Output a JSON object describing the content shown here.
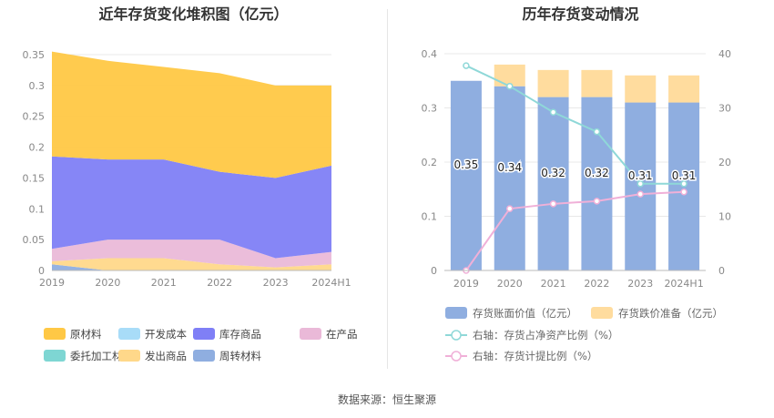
{
  "source": "数据来源：恒生聚源",
  "chart_data": [
    {
      "type": "area",
      "stacked": true,
      "title": "近年存货变化堆积图（亿元）",
      "categories": [
        "2019",
        "2020",
        "2021",
        "2022",
        "2023",
        "2024H1"
      ],
      "ylim": [
        0,
        0.35
      ],
      "yticks": [
        "0",
        "0.05",
        "0.1",
        "0.15",
        "0.2",
        "0.25",
        "0.3",
        "0.35"
      ],
      "grid": true,
      "legend_position": "bottom",
      "series": [
        {
          "name": "原材料",
          "color": "#ffc845",
          "values": [
            0.17,
            0.16,
            0.15,
            0.16,
            0.15,
            0.13
          ]
        },
        {
          "name": "开发成本",
          "color": "#a8dcf8",
          "values": [
            0,
            0,
            0,
            0,
            0,
            0
          ]
        },
        {
          "name": "库存商品",
          "color": "#7f7ff6",
          "values": [
            0.15,
            0.13,
            0.13,
            0.11,
            0.13,
            0.14
          ]
        },
        {
          "name": "在产品",
          "color": "#eab9d8",
          "values": [
            0.02,
            0.03,
            0.03,
            0.04,
            0.015,
            0.02
          ]
        },
        {
          "name": "委托加工材料",
          "color": "#7ed6d3",
          "values": [
            0,
            0,
            0,
            0,
            0,
            0
          ]
        },
        {
          "name": "发出商品",
          "color": "#ffd88a",
          "values": [
            0.005,
            0.02,
            0.02,
            0.01,
            0.005,
            0.01
          ]
        },
        {
          "name": "周转材料",
          "color": "#8faee0",
          "values": [
            0.01,
            0,
            0,
            0,
            0,
            0
          ]
        }
      ]
    },
    {
      "type": "bar",
      "stacked": true,
      "title": "历年存货变动情况",
      "categories": [
        "2019",
        "2020",
        "2021",
        "2022",
        "2023",
        "2024H1"
      ],
      "ylim": [
        0,
        0.4
      ],
      "yticks": [
        "0",
        "0.1",
        "0.2",
        "0.3",
        "0.4"
      ],
      "y2lim": [
        0,
        40
      ],
      "y2ticks": [
        "0",
        "10",
        "20",
        "30",
        "40"
      ],
      "grid": true,
      "legend_position": "bottom",
      "series": [
        {
          "name": "存货账面价值（亿元）",
          "color": "#8faee0",
          "axis": "left",
          "kind": "bar",
          "values": [
            0.35,
            0.34,
            0.32,
            0.32,
            0.31,
            0.31
          ],
          "labels": [
            "0.35",
            "0.34",
            "0.32",
            "0.32",
            "0.31",
            "0.31"
          ]
        },
        {
          "name": "存货跌价准备（亿元）",
          "color": "#ffdc9e",
          "axis": "left",
          "kind": "bar",
          "values": [
            0,
            0.04,
            0.05,
            0.05,
            0.05,
            0.05
          ]
        },
        {
          "name": "右轴：存货占净资产比例（%）",
          "color": "#8fd8d8",
          "axis": "right",
          "kind": "line",
          "values": [
            37.8,
            34,
            29.2,
            25.6,
            16,
            16
          ]
        },
        {
          "name": "右轴：存货计提比例（%）",
          "color": "#f0b0d8",
          "axis": "right",
          "kind": "line",
          "values": [
            0,
            11.4,
            12.3,
            12.8,
            14.1,
            14.5
          ]
        }
      ]
    }
  ]
}
